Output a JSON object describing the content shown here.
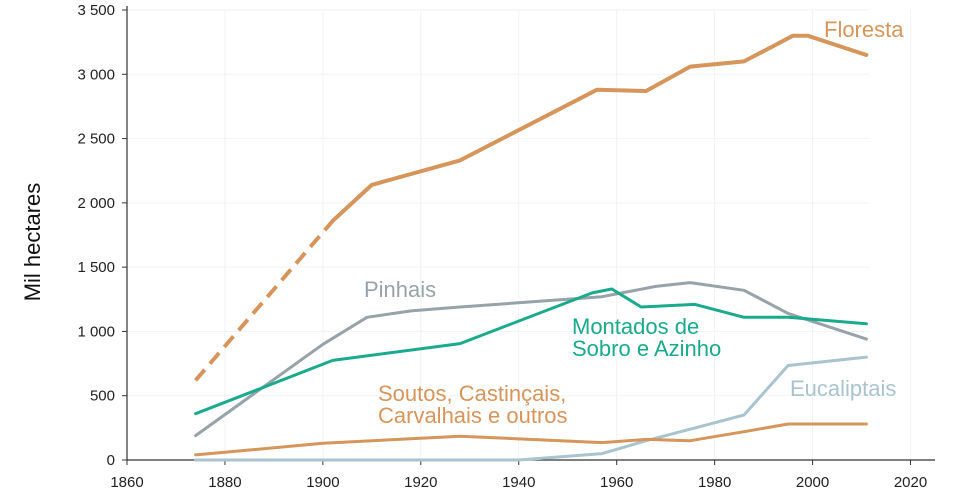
{
  "chart_data": {
    "type": "line",
    "ylabel": "Mil hectares",
    "xlabel": "",
    "xlim": [
      1860,
      2025
    ],
    "ylim": [
      0,
      3500
    ],
    "xticks": [
      1860,
      1880,
      1900,
      1920,
      1940,
      1960,
      1980,
      2000,
      2020
    ],
    "yticks": [
      0,
      500,
      1000,
      1500,
      2000,
      2500,
      3000,
      3500
    ],
    "ytick_labels": [
      "0",
      "500",
      "1 000",
      "1 500",
      "2 000",
      "2 500",
      "3 000",
      "3 500"
    ],
    "grid": "faint vertical and horizontal",
    "series": [
      {
        "name": "Floresta",
        "label_lines": [
          "Floresta"
        ],
        "color": "#d6955a",
        "width": 4,
        "dashed_until_x": 1902,
        "points": [
          [
            1874,
            620
          ],
          [
            1902,
            1860
          ],
          [
            1910,
            2140
          ],
          [
            1928,
            2330
          ],
          [
            1956,
            2880
          ],
          [
            1966,
            2870
          ],
          [
            1975,
            3060
          ],
          [
            1986,
            3100
          ],
          [
            1996,
            3300
          ],
          [
            1999,
            3300
          ],
          [
            2011,
            3150
          ]
        ]
      },
      {
        "name": "Pinhais",
        "label_lines": [
          "Pinhais"
        ],
        "color": "#97a3a9",
        "width": 3,
        "points": [
          [
            1874,
            190
          ],
          [
            1900,
            900
          ],
          [
            1909,
            1110
          ],
          [
            1918,
            1160
          ],
          [
            1928,
            1190
          ],
          [
            1957,
            1270
          ],
          [
            1968,
            1350
          ],
          [
            1975,
            1380
          ],
          [
            1986,
            1320
          ],
          [
            1995,
            1140
          ],
          [
            2011,
            940
          ]
        ]
      },
      {
        "name": "Montados de Sobro e Azinho",
        "label_lines": [
          "Montados de",
          "Sobro e Azinho"
        ],
        "color": "#1aaa8c",
        "width": 3,
        "points": [
          [
            1874,
            360
          ],
          [
            1902,
            775
          ],
          [
            1928,
            905
          ],
          [
            1955,
            1300
          ],
          [
            1959,
            1330
          ],
          [
            1965,
            1190
          ],
          [
            1976,
            1210
          ],
          [
            1986,
            1110
          ],
          [
            1995,
            1110
          ],
          [
            2011,
            1060
          ]
        ]
      },
      {
        "name": "Eucaliptais",
        "label_lines": [
          "Eucaliptais"
        ],
        "color": "#a9c4cf",
        "width": 3,
        "points": [
          [
            1874,
            0
          ],
          [
            1940,
            0
          ],
          [
            1957,
            50
          ],
          [
            1966,
            150
          ],
          [
            1976,
            250
          ],
          [
            1986,
            350
          ],
          [
            1995,
            735
          ],
          [
            2011,
            800
          ]
        ]
      },
      {
        "name": "Soutos, Castinçais, Carvalhais e outros",
        "label_lines": [
          "Soutos, Castinçais,",
          "Carvalhais e outros"
        ],
        "color": "#d6955a",
        "width": 3,
        "points": [
          [
            1874,
            40
          ],
          [
            1900,
            130
          ],
          [
            1928,
            185
          ],
          [
            1957,
            135
          ],
          [
            1966,
            160
          ],
          [
            1975,
            150
          ],
          [
            1986,
            220
          ],
          [
            1995,
            280
          ],
          [
            2011,
            280
          ]
        ]
      }
    ]
  }
}
